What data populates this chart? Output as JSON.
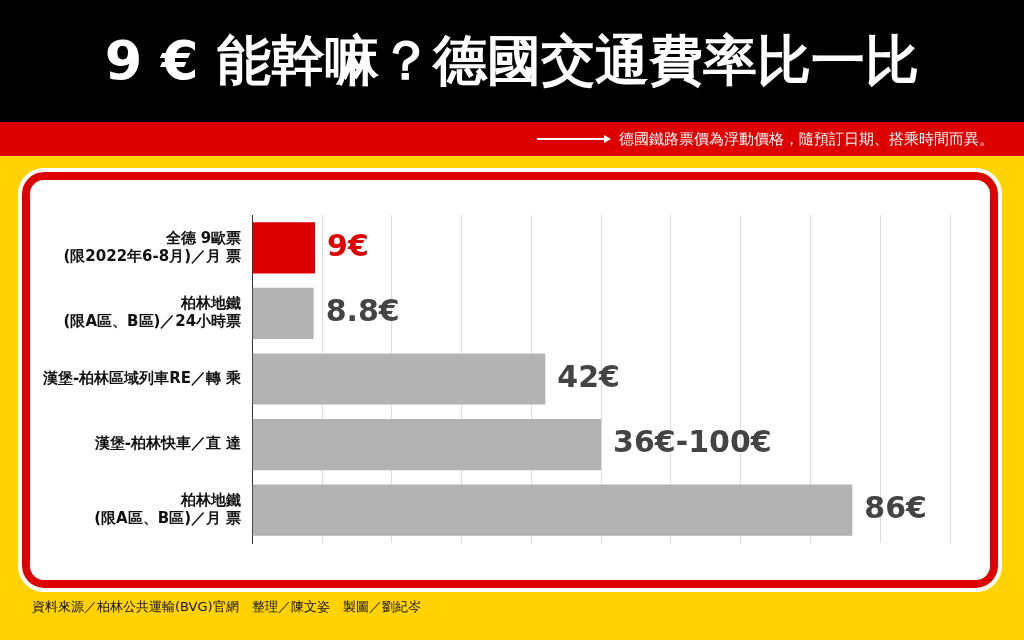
{
  "chart_data": {
    "type": "bar",
    "orientation": "horizontal",
    "title": "9 € 能幹嘛？德國交通費率比一比",
    "subtitle": "德國鐵路票價為浮動價格，隨預訂日期、搭乘時間而異。",
    "categories": [
      "全德 9歐票\n(限2022年6-8月)／月 票",
      "柏林地鐵\n(限A區、B區)／24小時票",
      "漢堡-柏林區域列車RE／轉 乘",
      "漢堡-柏林快車／直 達",
      "柏林地鐵\n(限A區、B區)／月 票"
    ],
    "values": [
      9,
      8.8,
      42,
      50,
      86
    ],
    "value_labels": [
      "9€",
      "8.8€",
      "42€",
      null,
      "86€"
    ],
    "colors": [
      "#dd0000",
      "#b3b3b3",
      "#b3b3b3",
      "#b3b3b3",
      "#b3b3b3"
    ],
    "xlim": [
      0,
      100
    ],
    "xticks": [
      {
        "value": 0,
        "label": null
      },
      {
        "value": 10,
        "label": null
      },
      {
        "value": 20,
        "label": null
      },
      {
        "value": 30,
        "label": null
      },
      {
        "value": 40,
        "label": null
      },
      {
        "value": 50,
        "label": null
      },
      {
        "value": 60,
        "label": null
      },
      {
        "value": 70,
        "label": null
      },
      {
        "value": 80,
        "label": null
      },
      {
        "value": 90,
        "label": null
      },
      {
        "value": 100,
        "label": null
      }
    ],
    "grid": "x",
    "legend": false,
    "tick_labels": "y",
    "annotations": [
      {
        "text": "36€-100€",
        "x": 50,
        "y": "漢堡-柏林快車／直 達"
      },
      "資料來源／柏林公共運輸(BVG)官網　整理／陳文姿　製圖／劉紀岑"
    ]
  }
}
